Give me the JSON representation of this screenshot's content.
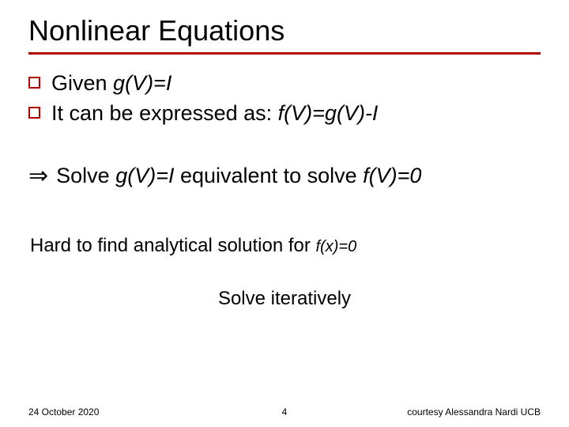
{
  "title": "Nonlinear Equations",
  "accent_color": "#b00000",
  "bullets": {
    "b1_pre": "Given ",
    "b1_ital": "g(V)=I",
    "b2_pre": "It can be expressed as: ",
    "b2_ital": "f(V)=g(V)-I",
    "arrow_glyph": "⇒",
    "c_pre": "Solve ",
    "c_ital1": "g(V)=I",
    "c_mid": " equivalent to solve ",
    "c_ital2": "f(V)=0"
  },
  "sub1_pre": "Hard to find analytical solution for ",
  "sub1_ital": "f(x)=0",
  "sub2": "Solve iteratively",
  "footer": {
    "date": "24 October 2020",
    "page": "4",
    "credit": "courtesy Alessandra Nardi UCB"
  }
}
